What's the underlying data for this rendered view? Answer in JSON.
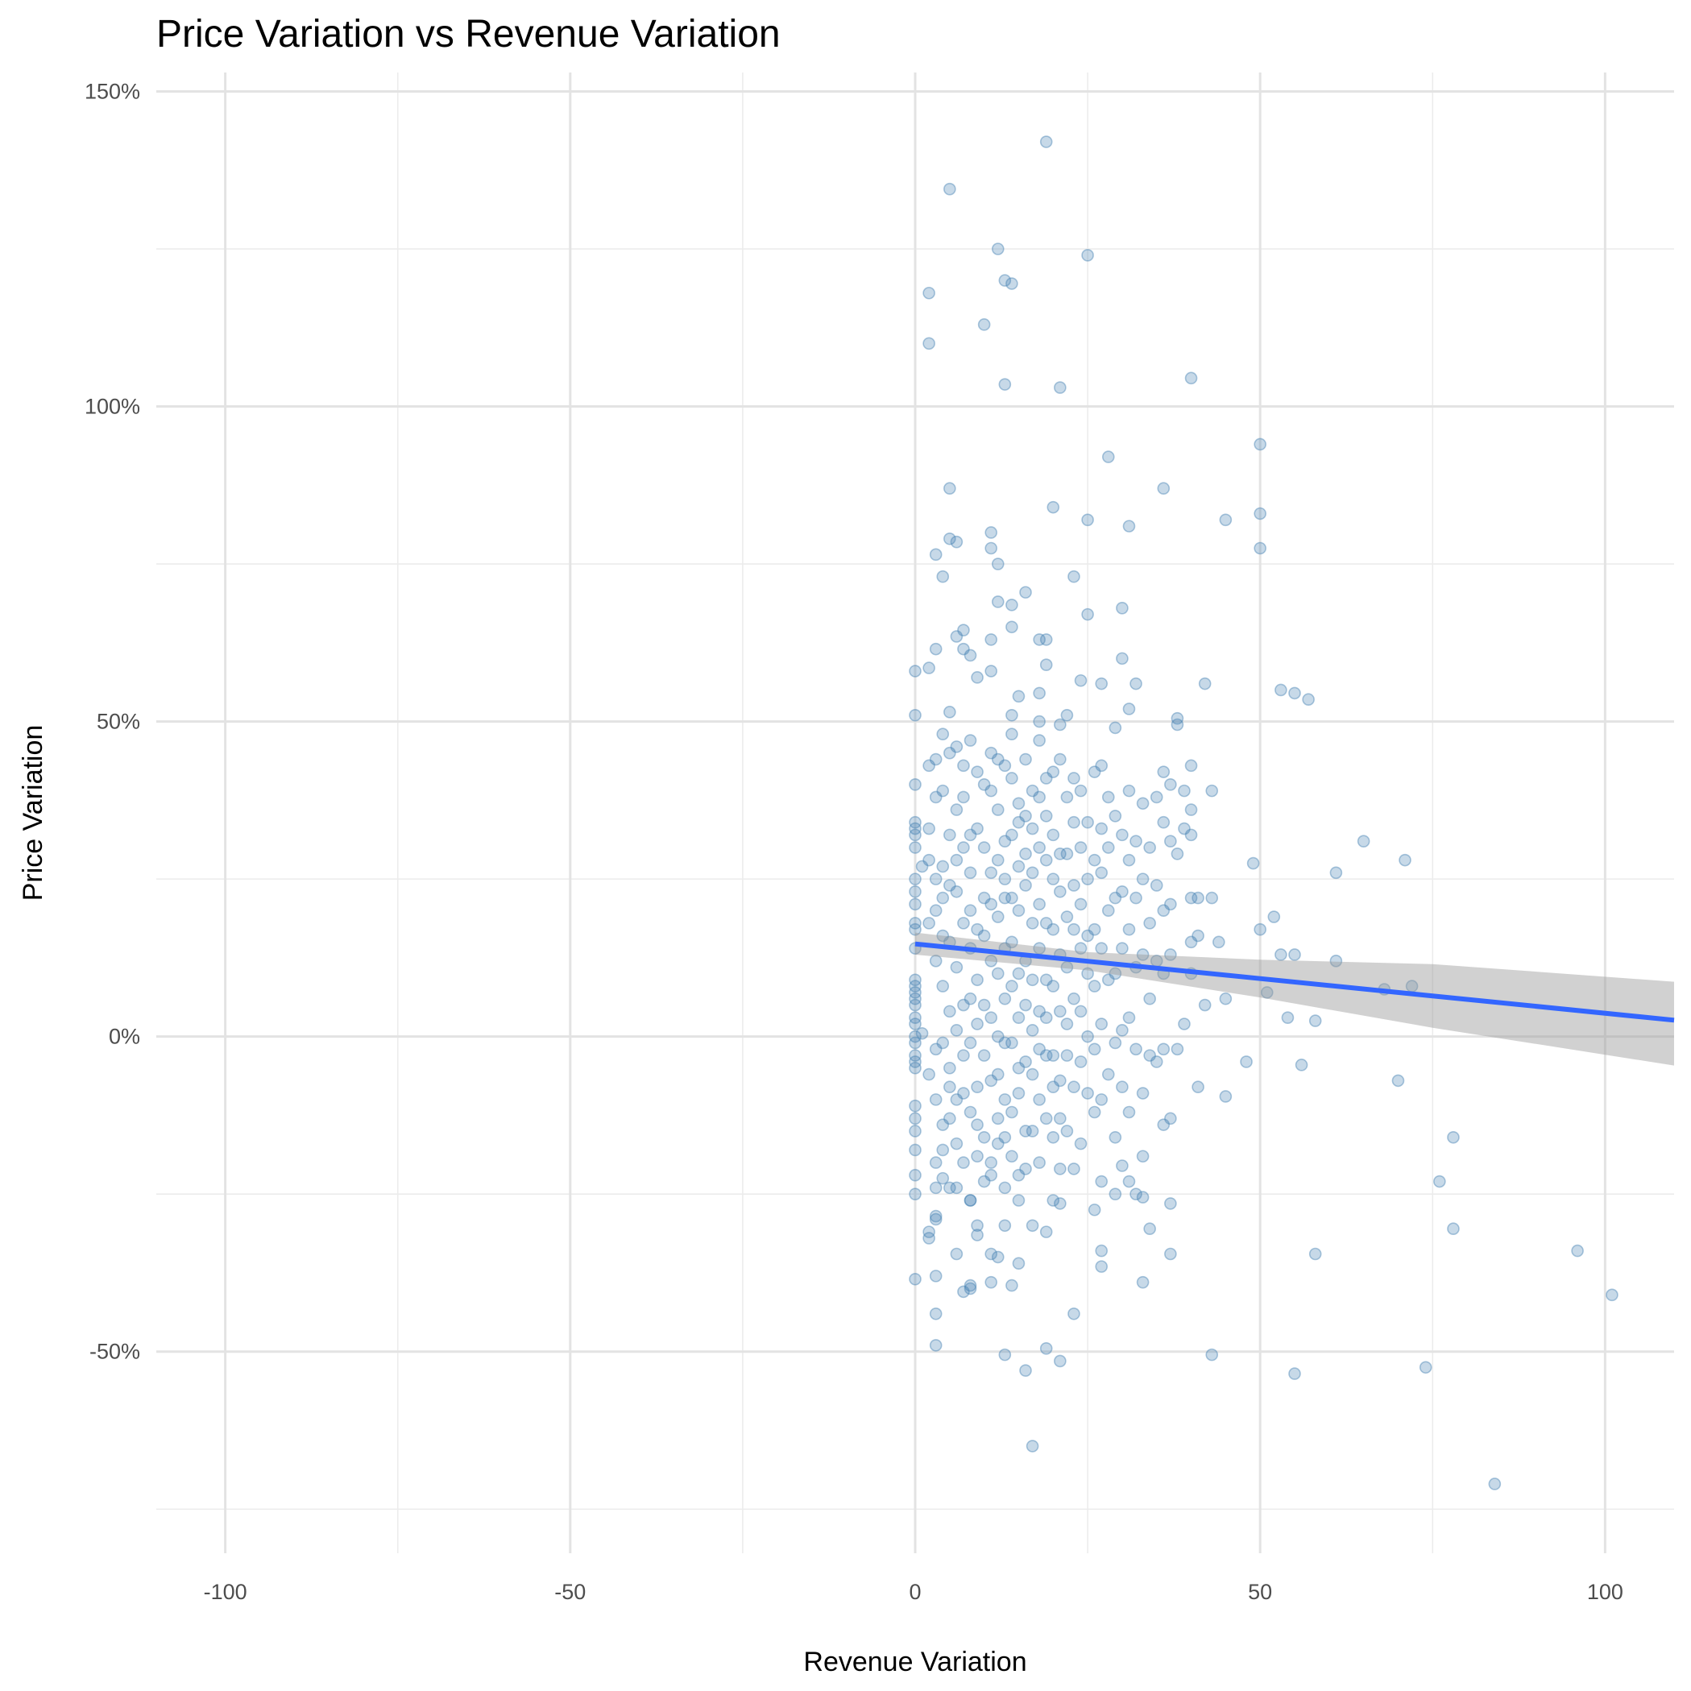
{
  "chart_data": {
    "type": "scatter",
    "title": "Price Variation vs Revenue Variation",
    "x_label": "Revenue Variation",
    "y_label": "Price Variation",
    "xlim": [
      -110,
      110
    ],
    "ylim": [
      -82,
      153
    ],
    "xticks": [
      -100,
      -50,
      0,
      50,
      100
    ],
    "yticks": [
      {
        "value": -50,
        "label": "-50%"
      },
      {
        "value": 0,
        "label": "0%"
      },
      {
        "value": 50,
        "label": "50%"
      },
      {
        "value": 100,
        "label": "100%"
      },
      {
        "value": 150,
        "label": "150%"
      }
    ],
    "x_minor_ticks": [
      -75,
      -25,
      25,
      75
    ],
    "y_minor_ticks": [
      -75,
      -25,
      25,
      75,
      125
    ],
    "grid": true,
    "color": "#4682b4",
    "x": [
      19,
      5,
      12,
      25,
      13,
      14,
      2,
      10,
      2,
      13,
      21,
      40,
      28,
      50,
      36,
      5,
      20,
      50,
      25,
      31,
      45,
      11,
      5,
      6,
      50,
      11,
      3,
      12,
      4,
      23,
      16,
      12,
      14,
      30,
      25,
      14,
      7,
      6,
      11,
      18,
      19,
      3,
      7,
      8,
      30,
      19,
      2,
      0,
      11,
      9,
      24,
      27,
      32,
      42,
      53,
      55,
      57,
      15,
      18,
      31,
      5,
      0,
      14,
      22,
      21,
      38,
      38,
      29,
      18,
      65,
      71,
      61,
      49,
      52,
      50,
      44,
      53,
      55,
      61,
      68,
      72,
      51,
      54,
      58,
      48,
      56,
      45,
      70,
      78,
      76,
      78,
      58,
      96,
      101,
      43,
      55,
      74,
      84,
      17,
      16,
      21,
      19,
      13,
      3,
      3,
      23,
      0,
      3,
      7,
      8,
      8,
      11,
      14,
      15,
      12,
      11,
      6,
      33,
      27,
      27,
      37,
      34,
      37,
      19,
      17,
      13,
      9,
      9,
      2,
      2,
      3,
      3,
      0,
      4,
      8,
      15,
      20,
      21,
      26,
      29,
      32,
      33,
      27,
      31,
      30,
      36,
      0,
      0,
      0,
      0,
      0,
      0,
      0,
      0,
      0,
      0,
      0,
      0,
      0,
      0,
      0,
      0,
      0,
      0,
      0,
      0,
      0,
      0,
      0,
      0,
      0,
      0,
      0,
      0,
      1,
      1,
      2,
      2,
      2,
      2,
      2,
      3,
      3,
      3,
      3,
      3,
      3,
      3,
      3,
      3,
      4,
      4,
      4,
      4,
      4,
      4,
      4,
      4,
      4,
      5,
      5,
      5,
      5,
      5,
      5,
      5,
      5,
      5,
      6,
      6,
      6,
      6,
      6,
      6,
      6,
      6,
      6,
      7,
      7,
      7,
      7,
      7,
      7,
      7,
      7,
      8,
      8,
      8,
      8,
      8,
      8,
      8,
      8,
      8,
      9,
      9,
      9,
      9,
      9,
      9,
      9,
      9,
      10,
      10,
      10,
      10,
      10,
      10,
      10,
      10,
      11,
      11,
      11,
      11,
      11,
      11,
      11,
      11,
      11,
      12,
      12,
      12,
      12,
      12,
      12,
      12,
      12,
      12,
      13,
      13,
      13,
      13,
      13,
      13,
      13,
      13,
      13,
      13,
      14,
      14,
      14,
      14,
      14,
      14,
      14,
      14,
      14,
      15,
      15,
      15,
      15,
      15,
      15,
      15,
      15,
      15,
      16,
      16,
      16,
      16,
      16,
      16,
      16,
      16,
      16,
      17,
      17,
      17,
      17,
      17,
      17,
      17,
      17,
      18,
      18,
      18,
      18,
      18,
      18,
      18,
      18,
      18,
      19,
      19,
      19,
      19,
      19,
      19,
      19,
      19,
      20,
      20,
      20,
      20,
      20,
      20,
      20,
      20,
      21,
      21,
      21,
      21,
      21,
      21,
      21,
      21,
      22,
      22,
      22,
      22,
      22,
      22,
      22,
      23,
      23,
      23,
      23,
      23,
      23,
      23,
      24,
      24,
      24,
      24,
      24,
      24,
      24,
      25,
      25,
      25,
      25,
      25,
      25,
      26,
      26,
      26,
      26,
      26,
      26,
      27,
      27,
      27,
      27,
      27,
      27,
      28,
      28,
      28,
      28,
      28,
      29,
      29,
      29,
      29,
      29,
      30,
      30,
      30,
      30,
      30,
      31,
      31,
      31,
      31,
      31,
      32,
      32,
      32,
      32,
      33,
      33,
      33,
      33,
      33,
      34,
      34,
      34,
      34,
      35,
      35,
      35,
      35,
      36,
      36,
      36,
      36,
      36,
      37,
      37,
      37,
      37,
      37,
      38,
      38,
      39,
      39,
      39,
      40,
      40,
      40,
      40,
      40,
      40,
      41,
      41,
      41,
      42,
      43,
      43,
      45
    ],
    "values": [
      142,
      134.5,
      125,
      124,
      120,
      119.5,
      118,
      113,
      110,
      103.5,
      103,
      104.5,
      92,
      94,
      87,
      87,
      84,
      83,
      82,
      81,
      82,
      80,
      79,
      78.5,
      77.5,
      77.5,
      76.5,
      75,
      73,
      73,
      70.5,
      69,
      68.5,
      68,
      67,
      65,
      64.5,
      63.5,
      63,
      63,
      63,
      61.5,
      61.5,
      60.5,
      60,
      59,
      58.5,
      58,
      58,
      57,
      56.5,
      56,
      56,
      56,
      55,
      54.5,
      53.5,
      54,
      54.5,
      52,
      51.5,
      51,
      51,
      51,
      49.5,
      50.5,
      49.5,
      49,
      50,
      31,
      28,
      26,
      27.5,
      19,
      17,
      15,
      13,
      13,
      12,
      7.5,
      8,
      7,
      3,
      2.5,
      -4,
      -4.5,
      -9.5,
      -7,
      -16,
      -23,
      -30.5,
      -34.5,
      -34,
      -41,
      -50.5,
      -53.5,
      -52.5,
      -71,
      -65,
      -53,
      -51.5,
      -49.5,
      -50.5,
      -49,
      -44,
      -44,
      -38.5,
      -38,
      -40.5,
      -39.5,
      -40,
      -39,
      -39.5,
      -36,
      -35,
      -34.5,
      -34.5,
      -39,
      -36.5,
      -34,
      -34.5,
      -30.5,
      -26.5,
      -31,
      -30,
      -30,
      -30,
      -31.5,
      -31,
      -32,
      -29,
      -28.5,
      -25,
      -22.5,
      -26,
      -26,
      -26,
      -26.5,
      -27.5,
      -25,
      -25,
      -25.5,
      -23,
      -23,
      -20.5,
      -14,
      40,
      34,
      33,
      32,
      30,
      25,
      23,
      21,
      18,
      17,
      14,
      9,
      8,
      7,
      6,
      5,
      3,
      2,
      0,
      -1,
      -3,
      -4,
      -5,
      -11,
      -13,
      -15,
      -18,
      -22,
      27,
      0.5,
      43,
      33,
      28,
      18,
      -6,
      44,
      38,
      25,
      20,
      12,
      -2,
      -10,
      -20,
      -24,
      48,
      39,
      27,
      22,
      16,
      8,
      -1,
      -14,
      -18,
      45,
      32,
      24,
      15,
      4,
      -5,
      -8,
      -13,
      -24,
      46,
      36,
      28,
      23,
      11,
      1,
      -10,
      -17,
      -24,
      43,
      38,
      30,
      18,
      5,
      -3,
      -9,
      -20,
      47,
      32,
      26,
      20,
      14,
      6,
      -1,
      -12,
      -26,
      42,
      33,
      17,
      9,
      2,
      -8,
      -14,
      -19,
      40,
      30,
      22,
      16,
      5,
      -3,
      -16,
      -23,
      45,
      39,
      26,
      21,
      12,
      3,
      -7,
      -20,
      -22,
      44,
      36,
      28,
      19,
      10,
      0,
      -6,
      -13,
      -17,
      43,
      31,
      25,
      22,
      14,
      6,
      -1,
      -10,
      -16,
      -24,
      48,
      41,
      32,
      22,
      15,
      8,
      -1,
      -12,
      -19,
      37,
      34,
      27,
      20,
      10,
      3,
      -5,
      -9,
      -22,
      44,
      35,
      29,
      24,
      12,
      5,
      -4,
      -15,
      -21,
      39,
      33,
      26,
      18,
      9,
      1,
      -6,
      -15,
      47,
      38,
      30,
      21,
      14,
      4,
      -2,
      -10,
      -20,
      41,
      35,
      28,
      18,
      9,
      3,
      -3,
      -13,
      42,
      32,
      25,
      17,
      8,
      -3,
      -8,
      -16,
      44,
      29,
      23,
      13,
      4,
      -7,
      -13,
      -21,
      38,
      29,
      19,
      11,
      2,
      -3,
      -15,
      41,
      34,
      24,
      17,
      6,
      -8,
      -21,
      39,
      30,
      21,
      14,
      4,
      -4,
      -17,
      34,
      25,
      16,
      10,
      0,
      -9,
      42,
      28,
      17,
      8,
      -2,
      -12,
      43,
      33,
      26,
      14,
      2,
      -10,
      38,
      30,
      20,
      9,
      -6,
      35,
      22,
      10,
      -1,
      -16,
      32,
      23,
      14,
      1,
      -8,
      39,
      28,
      17,
      3,
      -12,
      31,
      22,
      11,
      -2,
      37,
      25,
      13,
      -9,
      -19,
      30,
      18,
      6,
      -3,
      38,
      24,
      12,
      -4,
      42,
      34,
      20,
      10,
      -2,
      40,
      31,
      21,
      13,
      -13,
      29,
      -2,
      39,
      33,
      2,
      43,
      36,
      32,
      22,
      15,
      10,
      22,
      16,
      -8,
      5,
      39,
      22,
      6
    ],
    "trend": {
      "color": "#3366ff",
      "band_color": "#999999",
      "x": [
        0,
        25,
        50,
        75,
        110
      ],
      "y": [
        14.7,
        11.95,
        9.2,
        6.45,
        2.6
      ],
      "lower": [
        13.0,
        10.5,
        6.2,
        1.4,
        -4.6
      ],
      "upper": [
        16.5,
        13.4,
        12.2,
        11.5,
        8.7
      ]
    }
  }
}
